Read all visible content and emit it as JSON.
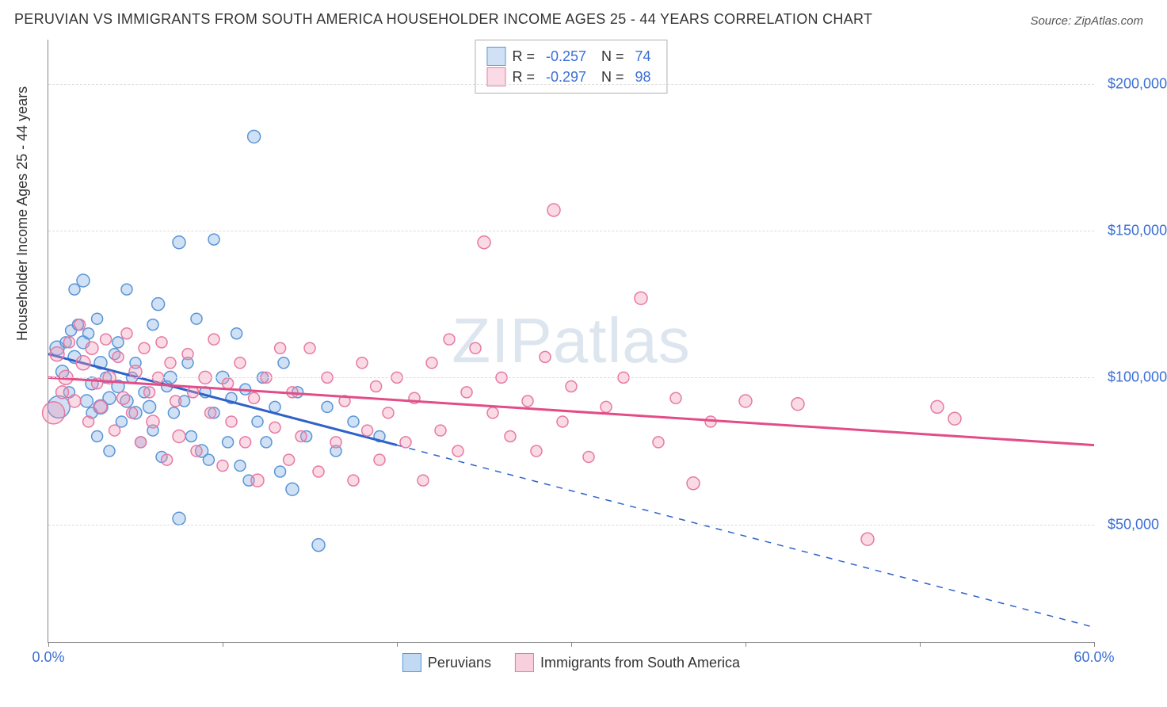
{
  "title": "PERUVIAN VS IMMIGRANTS FROM SOUTH AMERICA HOUSEHOLDER INCOME AGES 25 - 44 YEARS CORRELATION CHART",
  "source": "Source: ZipAtlas.com",
  "watermark": "ZIPatlas",
  "ylabel": "Householder Income Ages 25 - 44 years",
  "chart": {
    "type": "scatter",
    "xlim": [
      0,
      60
    ],
    "ylim": [
      10000,
      215000
    ],
    "xticks": [
      0,
      10,
      20,
      30,
      40,
      50,
      60
    ],
    "xtick_labels": {
      "0": "0.0%",
      "60": "60.0%"
    },
    "yticks": [
      50000,
      100000,
      150000,
      200000
    ],
    "ytick_labels": [
      "$50,000",
      "$100,000",
      "$150,000",
      "$200,000"
    ],
    "grid_color": "#dcdcdc",
    "axis_color": "#888888",
    "background_color": "#ffffff",
    "tick_label_color": "#3b6fd6",
    "tick_label_fontsize": 18,
    "title_fontsize": 18,
    "series": [
      {
        "name": "Peruvians",
        "fill": "rgba(120,170,230,0.35)",
        "stroke": "#5a95d6",
        "line_stroke": "#2f62c9",
        "line_dash_after_x": 20,
        "R": "-0.257",
        "N": "74",
        "regression": {
          "x1": 0,
          "y1": 108000,
          "x2": 60,
          "y2": 15000
        },
        "points": [
          {
            "x": 0.5,
            "y": 110000,
            "r": 9
          },
          {
            "x": 0.6,
            "y": 90000,
            "r": 14
          },
          {
            "x": 0.8,
            "y": 102000,
            "r": 8
          },
          {
            "x": 1.0,
            "y": 112000,
            "r": 7
          },
          {
            "x": 1.2,
            "y": 95000,
            "r": 7
          },
          {
            "x": 1.3,
            "y": 116000,
            "r": 7
          },
          {
            "x": 1.5,
            "y": 107000,
            "r": 8
          },
          {
            "x": 1.5,
            "y": 130000,
            "r": 7
          },
          {
            "x": 1.7,
            "y": 118000,
            "r": 7
          },
          {
            "x": 2.0,
            "y": 112000,
            "r": 8
          },
          {
            "x": 2.0,
            "y": 133000,
            "r": 8
          },
          {
            "x": 2.2,
            "y": 92000,
            "r": 8
          },
          {
            "x": 2.3,
            "y": 115000,
            "r": 7
          },
          {
            "x": 2.5,
            "y": 98000,
            "r": 8
          },
          {
            "x": 2.5,
            "y": 88000,
            "r": 7
          },
          {
            "x": 2.8,
            "y": 120000,
            "r": 7
          },
          {
            "x": 2.8,
            "y": 80000,
            "r": 7
          },
          {
            "x": 3.0,
            "y": 105000,
            "r": 8
          },
          {
            "x": 3.0,
            "y": 90000,
            "r": 9
          },
          {
            "x": 3.3,
            "y": 100000,
            "r": 7
          },
          {
            "x": 3.5,
            "y": 93000,
            "r": 8
          },
          {
            "x": 3.5,
            "y": 75000,
            "r": 7
          },
          {
            "x": 3.8,
            "y": 108000,
            "r": 7
          },
          {
            "x": 4.0,
            "y": 97000,
            "r": 8
          },
          {
            "x": 4.0,
            "y": 112000,
            "r": 7
          },
          {
            "x": 4.2,
            "y": 85000,
            "r": 7
          },
          {
            "x": 4.5,
            "y": 92000,
            "r": 8
          },
          {
            "x": 4.5,
            "y": 130000,
            "r": 7
          },
          {
            "x": 4.8,
            "y": 100000,
            "r": 7
          },
          {
            "x": 5.0,
            "y": 88000,
            "r": 8
          },
          {
            "x": 5.0,
            "y": 105000,
            "r": 7
          },
          {
            "x": 5.3,
            "y": 78000,
            "r": 7
          },
          {
            "x": 5.5,
            "y": 95000,
            "r": 7
          },
          {
            "x": 5.8,
            "y": 90000,
            "r": 8
          },
          {
            "x": 6.0,
            "y": 118000,
            "r": 7
          },
          {
            "x": 6.0,
            "y": 82000,
            "r": 7
          },
          {
            "x": 6.3,
            "y": 125000,
            "r": 8
          },
          {
            "x": 6.5,
            "y": 73000,
            "r": 7
          },
          {
            "x": 6.8,
            "y": 97000,
            "r": 7
          },
          {
            "x": 7.0,
            "y": 100000,
            "r": 8
          },
          {
            "x": 7.2,
            "y": 88000,
            "r": 7
          },
          {
            "x": 7.5,
            "y": 146000,
            "r": 8
          },
          {
            "x": 7.5,
            "y": 52000,
            "r": 8
          },
          {
            "x": 7.8,
            "y": 92000,
            "r": 7
          },
          {
            "x": 8.0,
            "y": 105000,
            "r": 7
          },
          {
            "x": 8.2,
            "y": 80000,
            "r": 7
          },
          {
            "x": 8.5,
            "y": 120000,
            "r": 7
          },
          {
            "x": 8.8,
            "y": 75000,
            "r": 8
          },
          {
            "x": 9.0,
            "y": 95000,
            "r": 7
          },
          {
            "x": 9.2,
            "y": 72000,
            "r": 7
          },
          {
            "x": 9.5,
            "y": 147000,
            "r": 7
          },
          {
            "x": 9.5,
            "y": 88000,
            "r": 7
          },
          {
            "x": 10.0,
            "y": 100000,
            "r": 8
          },
          {
            "x": 10.3,
            "y": 78000,
            "r": 7
          },
          {
            "x": 10.5,
            "y": 93000,
            "r": 7
          },
          {
            "x": 10.8,
            "y": 115000,
            "r": 7
          },
          {
            "x": 11.0,
            "y": 70000,
            "r": 7
          },
          {
            "x": 11.3,
            "y": 96000,
            "r": 7
          },
          {
            "x": 11.5,
            "y": 65000,
            "r": 7
          },
          {
            "x": 11.8,
            "y": 182000,
            "r": 8
          },
          {
            "x": 12.0,
            "y": 85000,
            "r": 7
          },
          {
            "x": 12.3,
            "y": 100000,
            "r": 7
          },
          {
            "x": 12.5,
            "y": 78000,
            "r": 7
          },
          {
            "x": 13.0,
            "y": 90000,
            "r": 7
          },
          {
            "x": 13.3,
            "y": 68000,
            "r": 7
          },
          {
            "x": 13.5,
            "y": 105000,
            "r": 7
          },
          {
            "x": 14.0,
            "y": 62000,
            "r": 8
          },
          {
            "x": 14.3,
            "y": 95000,
            "r": 7
          },
          {
            "x": 14.8,
            "y": 80000,
            "r": 7
          },
          {
            "x": 15.5,
            "y": 43000,
            "r": 8
          },
          {
            "x": 16.0,
            "y": 90000,
            "r": 7
          },
          {
            "x": 16.5,
            "y": 75000,
            "r": 7
          },
          {
            "x": 17.5,
            "y": 85000,
            "r": 7
          },
          {
            "x": 19.0,
            "y": 80000,
            "r": 7
          }
        ]
      },
      {
        "name": "Immigrants from South America",
        "fill": "rgba(240,150,180,0.35)",
        "stroke": "#e779a3",
        "line_stroke": "#e24d87",
        "line_dash_after_x": null,
        "R": "-0.297",
        "N": "98",
        "regression": {
          "x1": 0,
          "y1": 100000,
          "x2": 60,
          "y2": 77000
        },
        "points": [
          {
            "x": 0.3,
            "y": 88000,
            "r": 14
          },
          {
            "x": 0.5,
            "y": 108000,
            "r": 9
          },
          {
            "x": 0.8,
            "y": 95000,
            "r": 8
          },
          {
            "x": 1.0,
            "y": 100000,
            "r": 9
          },
          {
            "x": 1.2,
            "y": 112000,
            "r": 7
          },
          {
            "x": 1.5,
            "y": 92000,
            "r": 8
          },
          {
            "x": 1.8,
            "y": 118000,
            "r": 7
          },
          {
            "x": 2.0,
            "y": 105000,
            "r": 9
          },
          {
            "x": 2.3,
            "y": 85000,
            "r": 7
          },
          {
            "x": 2.5,
            "y": 110000,
            "r": 8
          },
          {
            "x": 2.8,
            "y": 98000,
            "r": 7
          },
          {
            "x": 3.0,
            "y": 90000,
            "r": 8
          },
          {
            "x": 3.3,
            "y": 113000,
            "r": 7
          },
          {
            "x": 3.5,
            "y": 100000,
            "r": 8
          },
          {
            "x": 3.8,
            "y": 82000,
            "r": 7
          },
          {
            "x": 4.0,
            "y": 107000,
            "r": 7
          },
          {
            "x": 4.3,
            "y": 93000,
            "r": 8
          },
          {
            "x": 4.5,
            "y": 115000,
            "r": 7
          },
          {
            "x": 4.8,
            "y": 88000,
            "r": 7
          },
          {
            "x": 5.0,
            "y": 102000,
            "r": 8
          },
          {
            "x": 5.3,
            "y": 78000,
            "r": 7
          },
          {
            "x": 5.5,
            "y": 110000,
            "r": 7
          },
          {
            "x": 5.8,
            "y": 95000,
            "r": 7
          },
          {
            "x": 6.0,
            "y": 85000,
            "r": 8
          },
          {
            "x": 6.3,
            "y": 100000,
            "r": 7
          },
          {
            "x": 6.5,
            "y": 112000,
            "r": 7
          },
          {
            "x": 6.8,
            "y": 72000,
            "r": 7
          },
          {
            "x": 7.0,
            "y": 105000,
            "r": 7
          },
          {
            "x": 7.3,
            "y": 92000,
            "r": 7
          },
          {
            "x": 7.5,
            "y": 80000,
            "r": 8
          },
          {
            "x": 8.0,
            "y": 108000,
            "r": 7
          },
          {
            "x": 8.3,
            "y": 95000,
            "r": 7
          },
          {
            "x": 8.5,
            "y": 75000,
            "r": 7
          },
          {
            "x": 9.0,
            "y": 100000,
            "r": 8
          },
          {
            "x": 9.3,
            "y": 88000,
            "r": 7
          },
          {
            "x": 9.5,
            "y": 113000,
            "r": 7
          },
          {
            "x": 10.0,
            "y": 70000,
            "r": 7
          },
          {
            "x": 10.3,
            "y": 98000,
            "r": 7
          },
          {
            "x": 10.5,
            "y": 85000,
            "r": 7
          },
          {
            "x": 11.0,
            "y": 105000,
            "r": 7
          },
          {
            "x": 11.3,
            "y": 78000,
            "r": 7
          },
          {
            "x": 11.8,
            "y": 93000,
            "r": 7
          },
          {
            "x": 12.0,
            "y": 65000,
            "r": 8
          },
          {
            "x": 12.5,
            "y": 100000,
            "r": 7
          },
          {
            "x": 13.0,
            "y": 83000,
            "r": 7
          },
          {
            "x": 13.3,
            "y": 110000,
            "r": 7
          },
          {
            "x": 13.8,
            "y": 72000,
            "r": 7
          },
          {
            "x": 14.0,
            "y": 95000,
            "r": 7
          },
          {
            "x": 14.5,
            "y": 80000,
            "r": 7
          },
          {
            "x": 15.0,
            "y": 110000,
            "r": 7
          },
          {
            "x": 15.5,
            "y": 68000,
            "r": 7
          },
          {
            "x": 16.0,
            "y": 100000,
            "r": 7
          },
          {
            "x": 16.5,
            "y": 78000,
            "r": 7
          },
          {
            "x": 17.0,
            "y": 92000,
            "r": 7
          },
          {
            "x": 17.5,
            "y": 65000,
            "r": 7
          },
          {
            "x": 18.0,
            "y": 105000,
            "r": 7
          },
          {
            "x": 18.3,
            "y": 82000,
            "r": 7
          },
          {
            "x": 18.8,
            "y": 97000,
            "r": 7
          },
          {
            "x": 19.0,
            "y": 72000,
            "r": 7
          },
          {
            "x": 19.5,
            "y": 88000,
            "r": 7
          },
          {
            "x": 20.0,
            "y": 100000,
            "r": 7
          },
          {
            "x": 20.5,
            "y": 78000,
            "r": 7
          },
          {
            "x": 21.0,
            "y": 93000,
            "r": 7
          },
          {
            "x": 21.5,
            "y": 65000,
            "r": 7
          },
          {
            "x": 22.0,
            "y": 105000,
            "r": 7
          },
          {
            "x": 22.5,
            "y": 82000,
            "r": 7
          },
          {
            "x": 23.0,
            "y": 113000,
            "r": 7
          },
          {
            "x": 23.5,
            "y": 75000,
            "r": 7
          },
          {
            "x": 24.0,
            "y": 95000,
            "r": 7
          },
          {
            "x": 24.5,
            "y": 110000,
            "r": 7
          },
          {
            "x": 25.0,
            "y": 146000,
            "r": 8
          },
          {
            "x": 25.5,
            "y": 88000,
            "r": 7
          },
          {
            "x": 26.0,
            "y": 100000,
            "r": 7
          },
          {
            "x": 26.5,
            "y": 80000,
            "r": 7
          },
          {
            "x": 27.5,
            "y": 92000,
            "r": 7
          },
          {
            "x": 28.0,
            "y": 75000,
            "r": 7
          },
          {
            "x": 28.5,
            "y": 107000,
            "r": 7
          },
          {
            "x": 29.0,
            "y": 157000,
            "r": 8
          },
          {
            "x": 29.5,
            "y": 85000,
            "r": 7
          },
          {
            "x": 30.0,
            "y": 97000,
            "r": 7
          },
          {
            "x": 31.0,
            "y": 73000,
            "r": 7
          },
          {
            "x": 32.0,
            "y": 90000,
            "r": 7
          },
          {
            "x": 33.0,
            "y": 100000,
            "r": 7
          },
          {
            "x": 34.0,
            "y": 127000,
            "r": 8
          },
          {
            "x": 35.0,
            "y": 78000,
            "r": 7
          },
          {
            "x": 36.0,
            "y": 93000,
            "r": 7
          },
          {
            "x": 37.0,
            "y": 64000,
            "r": 8
          },
          {
            "x": 38.0,
            "y": 85000,
            "r": 7
          },
          {
            "x": 40.0,
            "y": 92000,
            "r": 8
          },
          {
            "x": 43.0,
            "y": 91000,
            "r": 8
          },
          {
            "x": 47.0,
            "y": 45000,
            "r": 8
          },
          {
            "x": 51.0,
            "y": 90000,
            "r": 8
          },
          {
            "x": 52.0,
            "y": 86000,
            "r": 8
          }
        ]
      }
    ],
    "bottom_legend": [
      {
        "label": "Peruvians",
        "fill": "rgba(120,170,230,0.45)",
        "stroke": "#5a95d6"
      },
      {
        "label": "Immigrants from South America",
        "fill": "rgba(240,150,180,0.45)",
        "stroke": "#e779a3"
      }
    ]
  }
}
